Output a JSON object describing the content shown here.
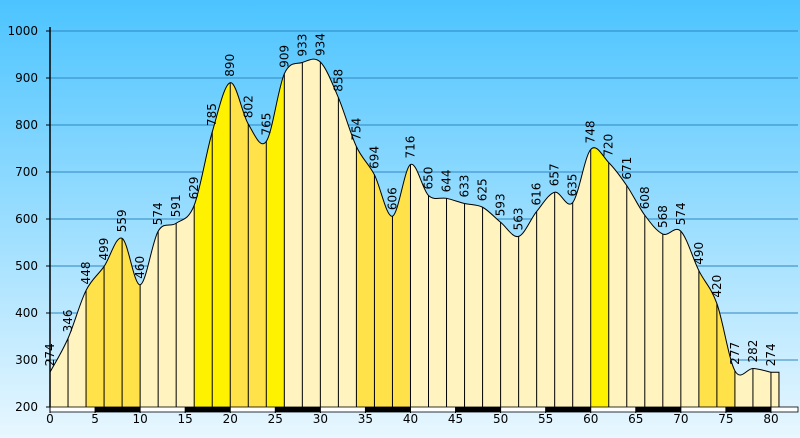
{
  "chart_data": {
    "type": "area",
    "title": "",
    "xlabel": "",
    "ylabel": "",
    "xlim": [
      0,
      83
    ],
    "ylim": [
      200,
      1000
    ],
    "yticks": [
      200,
      300,
      400,
      500,
      600,
      700,
      800,
      900,
      1000
    ],
    "xticks": [
      0,
      5,
      10,
      15,
      20,
      25,
      30,
      35,
      40,
      45,
      50,
      55,
      60,
      65,
      70,
      75,
      80
    ],
    "grid": true,
    "colors": {
      "background_top": "#4cc4ff",
      "background_bottom": "#e8f7ff",
      "fill_light": "#fff3bf",
      "fill_yellow": "#ffe14a",
      "fill_bright": "#fff200",
      "outline": "#000000",
      "gridline": "#2e86c1"
    },
    "points": [
      {
        "x": 0,
        "y": 274
      },
      {
        "x": 2,
        "y": 346
      },
      {
        "x": 4,
        "y": 448
      },
      {
        "x": 6,
        "y": 499
      },
      {
        "x": 8,
        "y": 559
      },
      {
        "x": 10,
        "y": 460
      },
      {
        "x": 12,
        "y": 574
      },
      {
        "x": 14,
        "y": 591
      },
      {
        "x": 16,
        "y": 629
      },
      {
        "x": 18,
        "y": 785
      },
      {
        "x": 20,
        "y": 890
      },
      {
        "x": 22,
        "y": 802
      },
      {
        "x": 24,
        "y": 765
      },
      {
        "x": 26,
        "y": 909
      },
      {
        "x": 28,
        "y": 933
      },
      {
        "x": 30,
        "y": 934
      },
      {
        "x": 32,
        "y": 858
      },
      {
        "x": 34,
        "y": 754
      },
      {
        "x": 36,
        "y": 694
      },
      {
        "x": 38,
        "y": 606
      },
      {
        "x": 40,
        "y": 716
      },
      {
        "x": 42,
        "y": 650
      },
      {
        "x": 44,
        "y": 644
      },
      {
        "x": 46,
        "y": 633
      },
      {
        "x": 48,
        "y": 625
      },
      {
        "x": 50,
        "y": 593
      },
      {
        "x": 52,
        "y": 563
      },
      {
        "x": 54,
        "y": 616
      },
      {
        "x": 56,
        "y": 657
      },
      {
        "x": 58,
        "y": 635
      },
      {
        "x": 60,
        "y": 748
      },
      {
        "x": 62,
        "y": 720
      },
      {
        "x": 64,
        "y": 671
      },
      {
        "x": 66,
        "y": 608
      },
      {
        "x": 68,
        "y": 568
      },
      {
        "x": 70,
        "y": 574
      },
      {
        "x": 72,
        "y": 490
      },
      {
        "x": 74,
        "y": 420
      },
      {
        "x": 76,
        "y": 277
      },
      {
        "x": 78,
        "y": 282
      },
      {
        "x": 80,
        "y": 274
      }
    ],
    "segments": [
      {
        "from": 0,
        "to": 4,
        "shade": "light"
      },
      {
        "from": 4,
        "to": 10,
        "shade": "yellow"
      },
      {
        "from": 10,
        "to": 16,
        "shade": "light"
      },
      {
        "from": 16,
        "to": 20,
        "shade": "bright"
      },
      {
        "from": 20,
        "to": 24,
        "shade": "yellow"
      },
      {
        "from": 24,
        "to": 26,
        "shade": "bright"
      },
      {
        "from": 26,
        "to": 34,
        "shade": "light"
      },
      {
        "from": 34,
        "to": 40,
        "shade": "yellow"
      },
      {
        "from": 40,
        "to": 60,
        "shade": "light"
      },
      {
        "from": 60,
        "to": 62,
        "shade": "bright"
      },
      {
        "from": 62,
        "to": 72,
        "shade": "light"
      },
      {
        "from": 72,
        "to": 76,
        "shade": "yellow"
      },
      {
        "from": 76,
        "to": 80,
        "shade": "light"
      }
    ]
  }
}
